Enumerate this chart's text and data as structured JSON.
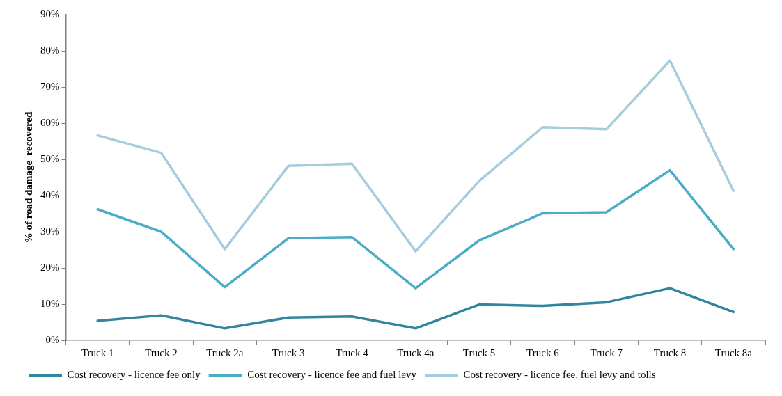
{
  "chart_data": {
    "type": "line",
    "ylabel": "% of road damage  recovered",
    "categories": [
      "Truck 1",
      "Truck 2",
      "Truck 2a",
      "Truck 3",
      "Truck 4",
      "Truck 4a",
      "Truck 5",
      "Truck 6",
      "Truck 7",
      "Truck 8",
      "Truck 8a"
    ],
    "series": [
      {
        "name": "Cost recovery - licence fee only",
        "color": "#31859c",
        "values": [
          5.4,
          6.9,
          3.3,
          6.3,
          6.6,
          3.3,
          9.9,
          9.5,
          10.5,
          14.4,
          7.8
        ]
      },
      {
        "name": "Cost recovery - licence fee and fuel levy",
        "color": "#4bacc6",
        "values": [
          36.2,
          30.0,
          14.7,
          28.2,
          28.5,
          14.4,
          27.6,
          35.1,
          35.4,
          47.0,
          25.2
        ]
      },
      {
        "name": "Cost recovery - licence fee, fuel levy and tolls",
        "color": "#a5cddb",
        "values": [
          56.6,
          51.8,
          25.2,
          48.2,
          48.8,
          24.6,
          44.0,
          58.9,
          58.3,
          77.3,
          41.3
        ]
      }
    ],
    "ylim": [
      0,
      90
    ],
    "yticks": [
      {
        "value": 0,
        "label": "0%"
      },
      {
        "value": 10,
        "label": "10%"
      },
      {
        "value": 20,
        "label": "20%"
      },
      {
        "value": 30,
        "label": "30%"
      },
      {
        "value": 40,
        "label": "40%"
      },
      {
        "value": 50,
        "label": "50%"
      },
      {
        "value": 60,
        "label": "60%"
      },
      {
        "value": 70,
        "label": "70%"
      },
      {
        "value": 80,
        "label": "80%"
      },
      {
        "value": 90,
        "label": "90%"
      }
    ],
    "grid": false,
    "legend": "bottom",
    "marker": "none",
    "line_style": "solid"
  }
}
